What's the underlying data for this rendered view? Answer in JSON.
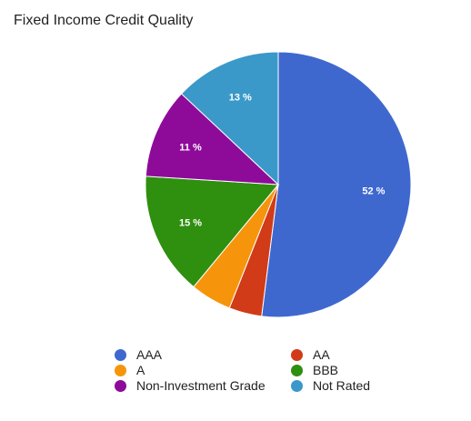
{
  "chart_data": {
    "type": "pie",
    "title": "Fixed Income Credit Quality",
    "slices": [
      {
        "label": "AAA",
        "value": 52,
        "color": "#3f68cf",
        "data_label": "52 %"
      },
      {
        "label": "AA",
        "value": 4,
        "color": "#d13b17",
        "data_label": ""
      },
      {
        "label": "A",
        "value": 5,
        "color": "#f6950c",
        "data_label": ""
      },
      {
        "label": "BBB",
        "value": 15,
        "color": "#2f8f0f",
        "data_label": "15 %"
      },
      {
        "label": "Non-Investment Grade",
        "value": 11,
        "color": "#8e0b9a",
        "data_label": "11 %"
      },
      {
        "label": "Not Rated",
        "value": 13,
        "color": "#3a99c8",
        "data_label": "13 %"
      }
    ],
    "legend_position": "bottom"
  }
}
